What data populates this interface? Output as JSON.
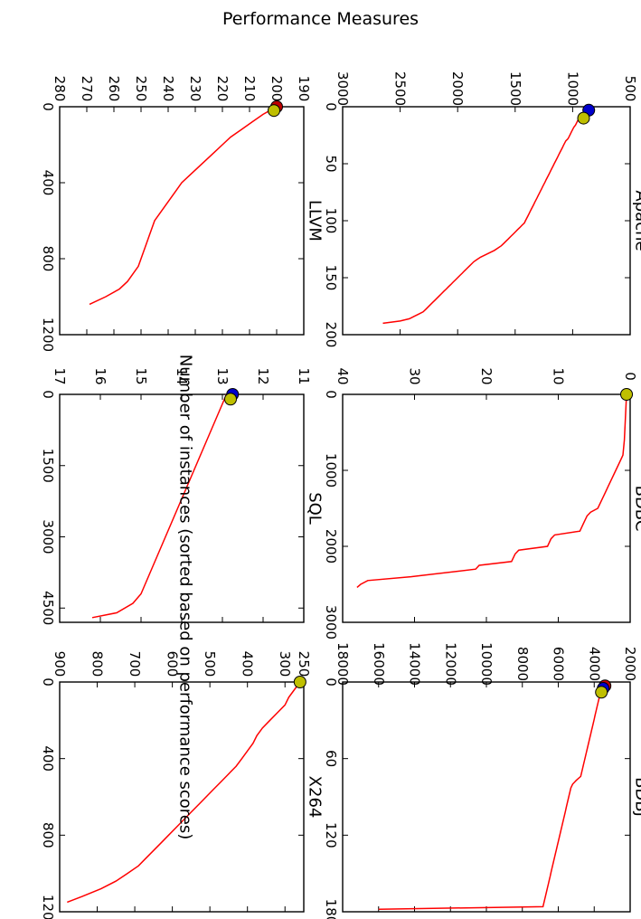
{
  "figure": {
    "title": "Performance Measures",
    "common_xlabel": "Number of instances (sorted based on performance scores)"
  },
  "colors": {
    "line": "#ff0000",
    "red_marker": "#c00000",
    "blue_marker": "#0000cc",
    "yellow_marker": "#bfbf00"
  },
  "chart_data": [
    {
      "type": "line",
      "title": "Apache",
      "xlim": [
        0,
        200
      ],
      "ylim": [
        500,
        3000
      ],
      "xticks": [
        0,
        50,
        100,
        150,
        200
      ],
      "yticks": [
        500,
        1000,
        1500,
        2000,
        2500,
        3000
      ],
      "series": [
        {
          "x": [
            8,
            10,
            12,
            14,
            16,
            18,
            20,
            22,
            24,
            26,
            28,
            30,
            32,
            34,
            36,
            38,
            40,
            42,
            44,
            46,
            48,
            50,
            52,
            54,
            56,
            58,
            60,
            62,
            64,
            66,
            68,
            70,
            72,
            74,
            76,
            78,
            80,
            82,
            84,
            86,
            88,
            90,
            92,
            94,
            96,
            98,
            100,
            102,
            104,
            106,
            108,
            110,
            112,
            114,
            116,
            118,
            120,
            122,
            124,
            126,
            128,
            130,
            132,
            134,
            136,
            138,
            140,
            142,
            144,
            146,
            148,
            150,
            152,
            154,
            156,
            158,
            160,
            162,
            164,
            166,
            168,
            170,
            172,
            174,
            176,
            178,
            180,
            182,
            184,
            186,
            188,
            190
          ],
          "y": [
            920,
            940,
            955,
            965,
            975,
            990,
            1000,
            1010,
            1020,
            1030,
            1040,
            1060,
            1070,
            1080,
            1090,
            1100,
            1110,
            1120,
            1130,
            1140,
            1150,
            1160,
            1170,
            1180,
            1190,
            1200,
            1210,
            1220,
            1230,
            1240,
            1250,
            1260,
            1270,
            1280,
            1290,
            1300,
            1310,
            1320,
            1330,
            1340,
            1350,
            1360,
            1370,
            1380,
            1390,
            1400,
            1410,
            1420,
            1440,
            1460,
            1480,
            1500,
            1520,
            1540,
            1560,
            1580,
            1600,
            1620,
            1650,
            1680,
            1720,
            1760,
            1800,
            1830,
            1860,
            1880,
            1900,
            1920,
            1940,
            1960,
            1980,
            2000,
            2020,
            2040,
            2060,
            2080,
            2100,
            2120,
            2140,
            2160,
            2180,
            2200,
            2220,
            2240,
            2260,
            2280,
            2300,
            2340,
            2380,
            2420,
            2500,
            2650
          ]
        }
      ],
      "markers": [
        {
          "color": "blue",
          "x": 3,
          "y": 860
        },
        {
          "color": "yellow",
          "x": 10,
          "y": 905
        }
      ]
    },
    {
      "type": "line",
      "title": "BDBC",
      "xlim": [
        0,
        3000
      ],
      "ylim": [
        0,
        40
      ],
      "xticks": [
        0,
        1000,
        2000,
        3000
      ],
      "yticks": [
        0,
        10,
        20,
        30,
        40
      ],
      "series": [
        {
          "x": [
            0,
            200,
            400,
            600,
            800,
            900,
            1000,
            1100,
            1200,
            1300,
            1400,
            1500,
            1550,
            1600,
            1700,
            1800,
            1850,
            1900,
            2000,
            2050,
            2100,
            2200,
            2250,
            2300,
            2400,
            2450,
            2500,
            2540
          ],
          "y": [
            0.5,
            0.6,
            0.7,
            0.8,
            1.0,
            1.5,
            2.0,
            2.5,
            3.0,
            3.5,
            4.0,
            4.5,
            5.5,
            6.0,
            6.5,
            7.0,
            10.5,
            11.0,
            11.5,
            15.5,
            16.0,
            16.5,
            21.0,
            21.5,
            30.5,
            36.5,
            37.5,
            38.0
          ]
        }
      ],
      "markers": [
        {
          "color": "yellow",
          "x": 0,
          "y": 0.5
        }
      ]
    },
    {
      "type": "line",
      "title": "BDBJ",
      "xlim": [
        0,
        180
      ],
      "ylim": [
        2000,
        18000
      ],
      "xticks": [
        0,
        60,
        120,
        180
      ],
      "yticks": [
        2000,
        4000,
        6000,
        8000,
        10000,
        12000,
        14000,
        16000,
        18000
      ],
      "series": [
        {
          "x": [
            5,
            8,
            11,
            14,
            17,
            20,
            23,
            26,
            29,
            32,
            35,
            38,
            41,
            44,
            47,
            50,
            53,
            56,
            59,
            62,
            65,
            68,
            71,
            74,
            77,
            80,
            83,
            86,
            89,
            92,
            95,
            98,
            101,
            104,
            107,
            110,
            113,
            116,
            119,
            122,
            125,
            128,
            131,
            134,
            137,
            140,
            143,
            146,
            149,
            152,
            155,
            158,
            161,
            164,
            167,
            170,
            173,
            176,
            178
          ],
          "y": [
            3600,
            3650,
            3700,
            3750,
            3800,
            3850,
            3900,
            3950,
            4000,
            4050,
            4100,
            4150,
            4200,
            4250,
            4300,
            4350,
            4400,
            4450,
            4500,
            4550,
            4600,
            4650,
            4700,
            4750,
            5000,
            5200,
            5300,
            5350,
            5400,
            5450,
            5500,
            5550,
            5600,
            5650,
            5700,
            5750,
            5800,
            5850,
            5900,
            5950,
            6000,
            6050,
            6100,
            6150,
            6200,
            6250,
            6300,
            6350,
            6400,
            6450,
            6500,
            6550,
            6600,
            6650,
            6700,
            6750,
            6800,
            6850,
            16000
          ]
        }
      ],
      "markers": [
        {
          "color": "red",
          "x": 3,
          "y": 3400
        },
        {
          "color": "blue",
          "x": 5,
          "y": 3500
        },
        {
          "color": "yellow",
          "x": 8,
          "y": 3600
        }
      ]
    },
    {
      "type": "line",
      "title": "LLVM",
      "xlim": [
        0,
        1200
      ],
      "ylim": [
        190,
        280
      ],
      "xticks": [
        0,
        400,
        800,
        1200
      ],
      "yticks": [
        190,
        200,
        210,
        220,
        230,
        240,
        250,
        260,
        270,
        280
      ],
      "series": [
        {
          "x": [
            0,
            40,
            80,
            120,
            160,
            200,
            240,
            280,
            320,
            360,
            400,
            440,
            480,
            520,
            560,
            600,
            640,
            680,
            720,
            760,
            800,
            840,
            880,
            920,
            960,
            1000,
            1040
          ],
          "y": [
            200,
            205,
            209,
            213,
            217,
            220,
            223,
            226,
            229,
            232,
            235,
            237,
            239,
            241,
            243,
            245,
            246,
            247,
            248,
            249,
            250,
            251,
            253,
            255,
            258,
            263,
            269
          ]
        }
      ],
      "markers": [
        {
          "color": "red",
          "x": 0,
          "y": 200
        },
        {
          "color": "yellow",
          "x": 20,
          "y": 201
        }
      ]
    },
    {
      "type": "line",
      "title": "SQL",
      "xlim": [
        0,
        4800
      ],
      "ylim": [
        11,
        17
      ],
      "xticks": [
        0,
        1500,
        3000,
        4500
      ],
      "yticks": [
        11,
        12,
        13,
        14,
        15,
        16,
        17
      ],
      "series": [
        {
          "x": [
            0,
            200,
            400,
            600,
            800,
            1000,
            1200,
            1400,
            1600,
            1800,
            2000,
            2200,
            2400,
            2600,
            2800,
            3000,
            3200,
            3400,
            3600,
            3800,
            4000,
            4200,
            4400,
            4600,
            4700
          ],
          "y": [
            12.9,
            13.0,
            13.1,
            13.2,
            13.3,
            13.4,
            13.5,
            13.6,
            13.7,
            13.8,
            13.9,
            14.0,
            14.1,
            14.2,
            14.3,
            14.4,
            14.5,
            14.6,
            14.7,
            14.8,
            14.9,
            15.0,
            15.2,
            15.6,
            16.2
          ]
        }
      ],
      "markers": [
        {
          "color": "blue",
          "x": 0,
          "y": 12.75
        },
        {
          "color": "yellow",
          "x": 100,
          "y": 12.8
        }
      ]
    },
    {
      "type": "line",
      "title": "X264",
      "xlim": [
        0,
        1200
      ],
      "ylim": [
        250,
        900
      ],
      "xticks": [
        0,
        400,
        800,
        1200
      ],
      "yticks": [
        250,
        300,
        400,
        500,
        600,
        700,
        800,
        900
      ],
      "series": [
        {
          "x": [
            0,
            40,
            80,
            120,
            160,
            200,
            240,
            280,
            320,
            360,
            400,
            440,
            480,
            520,
            560,
            600,
            640,
            680,
            720,
            760,
            800,
            840,
            880,
            920,
            960,
            1000,
            1040,
            1080,
            1120,
            1150
          ],
          "y": [
            260,
            275,
            290,
            300,
            320,
            340,
            360,
            375,
            385,
            400,
            415,
            430,
            450,
            470,
            490,
            510,
            530,
            550,
            570,
            590,
            610,
            630,
            650,
            670,
            690,
            720,
            750,
            790,
            840,
            880
          ]
        }
      ],
      "markers": [
        {
          "color": "yellow",
          "x": 0,
          "y": 260
        }
      ]
    }
  ]
}
